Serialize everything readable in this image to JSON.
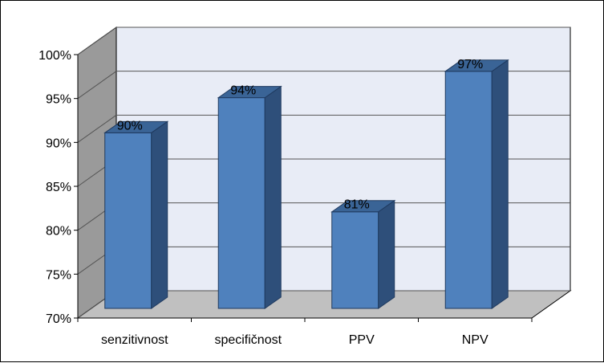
{
  "chart_data": {
    "type": "bar",
    "three_d": true,
    "categories": [
      "senzitivnost",
      "specifičnost",
      "PPV",
      "NPV"
    ],
    "values": [
      90,
      94,
      81,
      97
    ],
    "data_labels": [
      "90%",
      "94%",
      "81%",
      "97%"
    ],
    "y_ticks": [
      "70%",
      "75%",
      "80%",
      "85%",
      "90%",
      "95%",
      "100%"
    ],
    "ylim": [
      70,
      100
    ],
    "y_step": 5,
    "grid": true,
    "legend": false,
    "colors": {
      "bar_front": "#4f81bd",
      "bar_side": "#2e4f7a",
      "bar_top": "#3a6496",
      "back_wall": "#e8ecf6",
      "side_wall": "#9a9a9a",
      "floor": "#c0c0c0",
      "grid": "#555555"
    }
  }
}
